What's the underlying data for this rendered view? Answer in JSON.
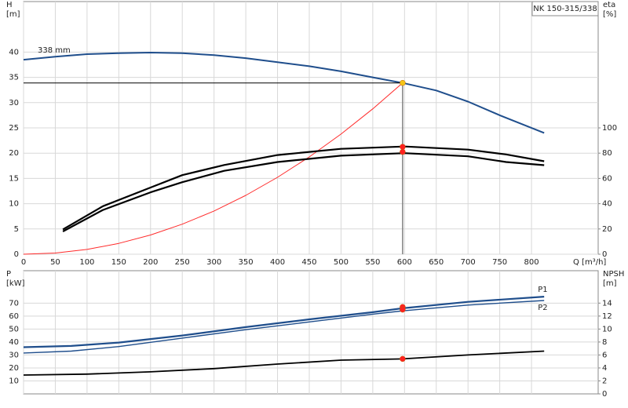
{
  "chart_data": [
    {
      "type": "line",
      "ylabel": "H",
      "yunit": "[m]",
      "y2label": "eta",
      "y2unit": "[%]",
      "xlabel": "Q [m³/h]",
      "badge": "NK 150-315/338",
      "xlim": [
        0,
        905
      ],
      "xticks": [
        0,
        50,
        100,
        150,
        200,
        250,
        300,
        350,
        400,
        450,
        500,
        550,
        600,
        650,
        700,
        750,
        800
      ],
      "show_xtick_labels": true,
      "ylim": [
        0,
        50
      ],
      "yticks": [
        0,
        5,
        10,
        15,
        20,
        25,
        30,
        35,
        40
      ],
      "y2lim": [
        0,
        200
      ],
      "y2ticks": [
        0,
        20,
        40,
        60,
        80,
        100
      ],
      "grid": true,
      "series": [
        {
          "name": "338 mm",
          "label_at": "start",
          "color": "#1f4e8c",
          "width": 2,
          "x": [
            0,
            50,
            100,
            150,
            200,
            250,
            300,
            350,
            400,
            450,
            500,
            550,
            597,
            650,
            700,
            750,
            820
          ],
          "values": [
            38.5,
            39.1,
            39.6,
            39.8,
            39.9,
            39.8,
            39.4,
            38.8,
            38.0,
            37.2,
            36.2,
            35.0,
            33.9,
            32.4,
            30.2,
            27.5,
            24.0
          ]
        },
        {
          "color": "#ff2a2a",
          "width": 1,
          "x": [
            0,
            50,
            100,
            150,
            200,
            250,
            300,
            350,
            400,
            450,
            500,
            550,
            597
          ],
          "values": [
            0,
            0.24,
            0.95,
            2.14,
            3.8,
            5.94,
            8.56,
            11.65,
            15.22,
            19.26,
            23.78,
            28.77,
            33.9
          ]
        },
        {
          "color": "#000000",
          "width": 1,
          "x": [
            0,
            597
          ],
          "values": [
            33.9,
            33.9
          ]
        },
        {
          "color": "#808080",
          "width": 1.5,
          "x": [
            597,
            597
          ],
          "values": [
            0,
            33.9
          ]
        },
        {
          "color": "#000000",
          "width": 2.2,
          "axis": "y2",
          "x": [
            62,
            125,
            200,
            250,
            316,
            400,
            500,
            600,
            700,
            760,
            820
          ],
          "values": [
            19.6,
            38,
            52.8,
            62.6,
            70.6,
            78.5,
            83.4,
            85.3,
            82.8,
            79,
            73.6
          ]
        },
        {
          "color": "#000000",
          "width": 2.2,
          "axis": "y2",
          "x": [
            62,
            125,
            200,
            250,
            316,
            400,
            500,
            600,
            700,
            760,
            820
          ],
          "values": [
            18,
            35,
            49,
            57,
            66,
            73,
            78,
            80,
            77.5,
            73,
            70.5
          ]
        },
        {
          "marker": true,
          "color": "#ff2020",
          "axis": "y2",
          "x": [
            597,
            597
          ],
          "values": [
            85,
            81
          ]
        },
        {
          "marker": true,
          "color": "#f5c518",
          "x": [
            597
          ],
          "values": [
            33.9
          ]
        }
      ]
    },
    {
      "type": "line",
      "ylabel": "P",
      "yunit": "[kW]",
      "y2label": "NPSH",
      "y2unit": "[m]",
      "xlim": [
        0,
        905
      ],
      "xticks": [
        0,
        50,
        100,
        150,
        200,
        250,
        300,
        350,
        400,
        450,
        500,
        550,
        600,
        650,
        700,
        750,
        800
      ],
      "show_xtick_labels": false,
      "ylim": [
        0,
        95
      ],
      "yticks": [
        10,
        20,
        30,
        40,
        50,
        60,
        70
      ],
      "y2lim": [
        0,
        19
      ],
      "y2ticks": [
        0,
        2,
        4,
        6,
        8,
        10,
        12,
        14
      ],
      "grid": true,
      "series": [
        {
          "name": "P1",
          "label_at": "end",
          "color": "#1f4e8c",
          "width": 2.2,
          "x": [
            0,
            75,
            150,
            250,
            350,
            450,
            550,
            597,
            700,
            820
          ],
          "values": [
            36,
            37,
            39.6,
            45,
            51.5,
            57.5,
            63,
            66,
            71,
            75
          ]
        },
        {
          "name": "P2",
          "label_at": "end",
          "color": "#1f4e8c",
          "width": 1.4,
          "x": [
            0,
            75,
            150,
            250,
            350,
            450,
            550,
            597,
            700,
            820
          ],
          "values": [
            31.5,
            33,
            36.5,
            43,
            49.5,
            55.5,
            61.5,
            64,
            68.5,
            72
          ]
        },
        {
          "color": "#000000",
          "width": 1.8,
          "axis": "y2",
          "x": [
            0,
            100,
            200,
            300,
            400,
            500,
            597,
            700,
            820
          ],
          "values": [
            2.9,
            3.05,
            3.4,
            3.9,
            4.6,
            5.2,
            5.4,
            6.0,
            6.6
          ]
        },
        {
          "marker": true,
          "color": "#ff2020",
          "x": [
            597,
            597
          ],
          "values": [
            67,
            65
          ]
        },
        {
          "marker": true,
          "color": "#ff2020",
          "axis": "y2",
          "x": [
            597
          ],
          "values": [
            5.4
          ]
        }
      ]
    }
  ]
}
